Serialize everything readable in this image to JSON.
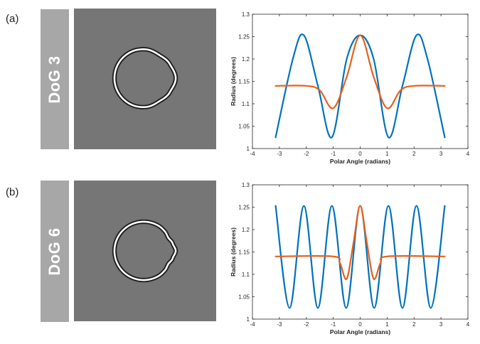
{
  "panels": [
    {
      "letter": "(a)",
      "label": "DoG 3"
    },
    {
      "letter": "(b)",
      "label": "DoG 6"
    }
  ],
  "colors": {
    "blue": "#0072bd",
    "orange": "#e8601c",
    "label_bg": "#a7a7a7",
    "stimulus_bg": "#767676"
  },
  "chart_data": [
    {
      "type": "line",
      "xlabel": "Polar Angle (radians)",
      "ylabel": "Radius (degrees)",
      "xlim": [
        -4,
        4
      ],
      "ylim": [
        1,
        1.3
      ],
      "xticks": [
        -4,
        -3,
        -2,
        -1,
        0,
        1,
        2,
        3,
        4
      ],
      "yticks": [
        1,
        1.05,
        1.1,
        1.15,
        1.2,
        1.25,
        1.3
      ],
      "ytick_labels": [
        "1",
        "1.05",
        "1.1",
        "1.15",
        "1.2",
        "1.25",
        "1.3"
      ],
      "grid": false,
      "series": [
        {
          "color": "#0072bd",
          "description": "radial frequency 3 sinusoid",
          "x": [
            -3.14,
            -2.5,
            -2.09,
            -1.57,
            -1.05,
            -0.5,
            0,
            0.5,
            1.05,
            1.57,
            2.09,
            2.5,
            3.14
          ],
          "y": [
            1.025,
            1.2,
            1.253,
            1.14,
            1.025,
            1.2,
            1.253,
            1.2,
            1.025,
            1.14,
            1.253,
            1.2,
            1.025
          ]
        },
        {
          "color": "#e8601c",
          "description": "difference-of-Gaussians profile",
          "x": [
            -3.14,
            -2.0,
            -1.5,
            -1.0,
            -0.5,
            0,
            0.5,
            1.0,
            1.5,
            2.0,
            3.14
          ],
          "y": [
            1.14,
            1.14,
            1.13,
            1.09,
            1.16,
            1.253,
            1.16,
            1.09,
            1.13,
            1.14,
            1.14
          ]
        }
      ]
    },
    {
      "type": "line",
      "xlabel": "Polar Angle (radians)",
      "ylabel": "Radius (degrees)",
      "xlim": [
        -4,
        4
      ],
      "ylim": [
        1,
        1.3
      ],
      "xticks": [
        -4,
        -3,
        -2,
        -1,
        0,
        1,
        2,
        3,
        4
      ],
      "yticks": [
        1,
        1.05,
        1.1,
        1.15,
        1.2,
        1.25,
        1.3
      ],
      "ytick_labels": [
        "1",
        "1.05",
        "1.1",
        "1.15",
        "1.2",
        "1.25",
        "1.3"
      ],
      "grid": false,
      "series": [
        {
          "color": "#0072bd",
          "description": "radial frequency 6 sinusoid",
          "x": [
            -3.14,
            -2.62,
            -2.09,
            -1.57,
            -1.05,
            -0.52,
            0,
            0.52,
            1.05,
            1.57,
            2.09,
            2.62,
            3.14
          ],
          "y": [
            1.253,
            1.025,
            1.253,
            1.025,
            1.253,
            1.025,
            1.253,
            1.025,
            1.253,
            1.025,
            1.253,
            1.025,
            1.253
          ]
        },
        {
          "color": "#e8601c",
          "description": "difference-of-Gaussians profile",
          "x": [
            -3.14,
            -1.0,
            -0.75,
            -0.5,
            -0.25,
            0,
            0.25,
            0.5,
            0.75,
            1.0,
            3.14
          ],
          "y": [
            1.14,
            1.14,
            1.125,
            1.09,
            1.17,
            1.253,
            1.17,
            1.09,
            1.125,
            1.14,
            1.14
          ]
        }
      ]
    }
  ]
}
